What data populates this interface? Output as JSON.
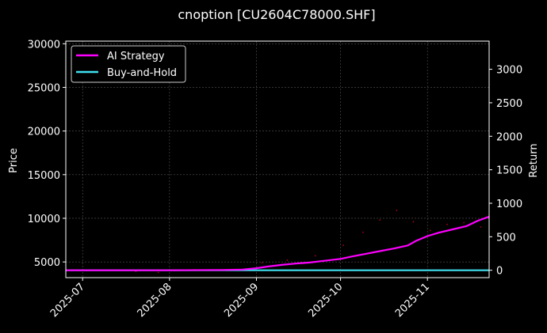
{
  "chart_data": {
    "type": "line",
    "title": "cnoption [CU2604C78000.SHF]",
    "ylabel_left": "Price",
    "ylabel_right": "Return",
    "x_ticks": [
      "2025-07",
      "2025-08",
      "2025-09",
      "2025-10",
      "2025-11"
    ],
    "x_range": [
      "2025-06-25",
      "2025-11-23"
    ],
    "y_left_ticks": [
      5000,
      10000,
      15000,
      20000,
      25000,
      30000
    ],
    "y_left_range": [
      3200,
      30300
    ],
    "y_right_ticks": [
      0,
      500,
      1000,
      1500,
      2000,
      2500,
      3000
    ],
    "y_right_range": [
      -110,
      3420
    ],
    "grid": true,
    "legend_position": "top-left",
    "series": [
      {
        "name": "AI Strategy",
        "axis": "right",
        "color": "#ff00ff",
        "x": [
          "2025-06-25",
          "2025-07-15",
          "2025-08-01",
          "2025-08-20",
          "2025-08-27",
          "2025-09-01",
          "2025-09-05",
          "2025-09-10",
          "2025-09-15",
          "2025-09-20",
          "2025-09-25",
          "2025-10-01",
          "2025-10-05",
          "2025-10-10",
          "2025-10-15",
          "2025-10-20",
          "2025-10-25",
          "2025-10-28",
          "2025-11-01",
          "2025-11-05",
          "2025-11-10",
          "2025-11-15",
          "2025-11-19",
          "2025-11-23"
        ],
        "values": [
          0,
          0,
          0,
          5,
          10,
          30,
          55,
          80,
          100,
          115,
          140,
          170,
          205,
          245,
          285,
          325,
          370,
          440,
          510,
          560,
          610,
          660,
          740,
          800
        ]
      },
      {
        "name": "Buy-and-Hold",
        "axis": "right",
        "color": "#40e0f0",
        "x": [
          "2025-06-25",
          "2025-11-23"
        ],
        "values": [
          0,
          0
        ]
      }
    ],
    "price_scatter": {
      "axis": "left",
      "color": "#aa0022",
      "x": [
        "2025-07-20",
        "2025-07-28",
        "2025-08-03",
        "2025-08-10",
        "2025-08-18",
        "2025-09-03",
        "2025-09-12",
        "2025-09-22",
        "2025-10-02",
        "2025-10-09",
        "2025-10-15",
        "2025-10-21",
        "2025-10-27",
        "2025-11-02",
        "2025-11-08",
        "2025-11-14",
        "2025-11-20"
      ],
      "values": [
        3900,
        3800,
        4000,
        4100,
        4050,
        4900,
        5200,
        5700,
        6900,
        8400,
        9800,
        10900,
        9600,
        8600,
        9300,
        9500,
        9000
      ]
    }
  }
}
